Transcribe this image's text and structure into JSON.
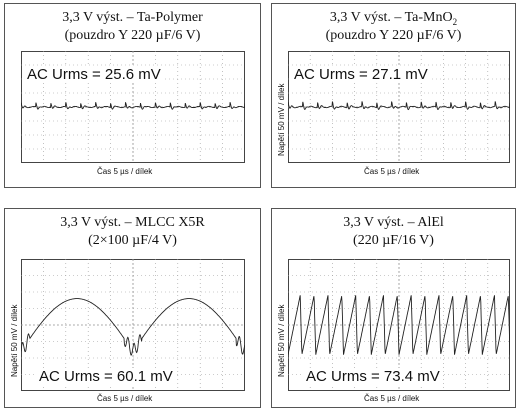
{
  "chart_data": [
    {
      "type": "line",
      "title_line1": "3,3 V výst. – Ta-Polymer",
      "title_line2": "(pouzdro Y 220 µF/6 V)",
      "annotation": "AC Urms = 25.6 mV",
      "xlabel": "Čas 5 µs / dílek",
      "ylabel": "",
      "grid": true,
      "waveform": "spiky",
      "periods": 15,
      "amplitude_divisions": 0.3
    },
    {
      "type": "line",
      "title_line1": "3,3 V výst. – Ta-MnO",
      "title_line1_subscript": "2",
      "title_line2": "(pouzdro Y 220 µF/6 V)",
      "annotation": "AC Urms = 27.1 mV",
      "xlabel": "Čas 5 µs / dílek",
      "ylabel": "Napětí 50 mV / dílek",
      "grid": true,
      "waveform": "spiky",
      "periods": 15,
      "amplitude_divisions": 0.35
    },
    {
      "type": "line",
      "title_line1": "3,3 V výst. – MLCC X5R",
      "title_line2": "(2×100 µF/4 V)",
      "annotation": "AC Urms = 60.1 mV",
      "xlabel": "Čas 5 µs / dílek",
      "ylabel": "Napětí 50 mV / dílek",
      "grid": true,
      "waveform": "rectified-sine",
      "periods": 2,
      "amplitude_divisions": 1.6
    },
    {
      "type": "line",
      "title_line1": "3,3 V výst. – AlEl",
      "title_line2": "(220 µF/16 V)",
      "annotation": "AC Urms = 73.4 mV",
      "xlabel": "Čas 5 µs / dílek",
      "ylabel": "Napětí 50 mV / dílek",
      "grid": true,
      "waveform": "sawtooth",
      "periods": 16,
      "amplitude_divisions": 1.8
    }
  ],
  "colors": {
    "trace": "#222222",
    "grid": "#9a9a9a",
    "frame": "#555555"
  }
}
